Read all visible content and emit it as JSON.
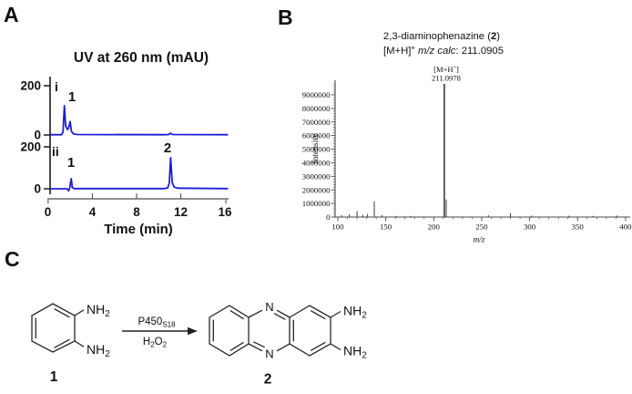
{
  "colors": {
    "trace_blue": "#1c1cd8",
    "axis_gray": "#8f8f8f",
    "axis_dark": "#1a1a1a",
    "ms_axis": "#4a4a4a",
    "ms_peak": "#3c3c3c",
    "text": "#111111"
  },
  "panelA": {
    "label": "A"
  },
  "panelB": {
    "label": "B",
    "title_prefix": "2,3-diaminophenazine (",
    "title_bold": "2",
    "title_suffix": ")",
    "subtitle_bracket": "[M+H]",
    "subtitle_sup": "+",
    "subtitle_italic": " m/z calc",
    "subtitle_rest": ": 211.0905",
    "annot_open": "[M+H",
    "annot_sup": "+",
    "annot_close": "]",
    "annot_mz": "211.0978"
  },
  "panelC": {
    "label": "C",
    "reactant_label": "1",
    "product_label": "2",
    "amine_text": "NH",
    "amine_sub": "2",
    "nitrogen": "N",
    "enzyme": "P450",
    "enzyme_sub": "S18",
    "oxidant_parts": [
      "H",
      "2",
      "O",
      "2"
    ]
  },
  "chart_data": [
    {
      "type": "line",
      "title": "UV at 260 nm (mAU)",
      "xlabel": "Time (min)",
      "y_unit": "mAU",
      "x_range": [
        0,
        16.3
      ],
      "xticks": [
        0,
        4,
        8,
        12,
        16
      ],
      "traces": [
        {
          "name": "i",
          "yticks": [
            200,
            0
          ],
          "points": [
            [
              0,
              1
            ],
            [
              1.05,
              1
            ],
            [
              1.18,
              12
            ],
            [
              1.3,
              119
            ],
            [
              1.42,
              38
            ],
            [
              1.58,
              22
            ],
            [
              1.68,
              28
            ],
            [
              1.82,
              55
            ],
            [
              1.95,
              14
            ],
            [
              2.15,
              4
            ],
            [
              2.5,
              2
            ],
            [
              10.5,
              1
            ],
            [
              10.8,
              2
            ],
            [
              10.95,
              7
            ],
            [
              11.15,
              2
            ],
            [
              16.2,
              1
            ]
          ]
        },
        {
          "name": "ii",
          "yticks": [
            200,
            0
          ],
          "points": [
            [
              0,
              0
            ],
            [
              1.55,
              0
            ],
            [
              1.68,
              -9
            ],
            [
              1.78,
              3
            ],
            [
              1.92,
              48
            ],
            [
              2.02,
              6
            ],
            [
              2.2,
              1
            ],
            [
              10.4,
              1
            ],
            [
              10.7,
              4
            ],
            [
              10.85,
              28
            ],
            [
              10.98,
              148
            ],
            [
              11.12,
              30
            ],
            [
              11.3,
              8
            ],
            [
              11.6,
              3
            ],
            [
              16.2,
              1
            ]
          ]
        }
      ],
      "peak_annotations": [
        {
          "text": "1",
          "trace": "i",
          "time": 1.6
        },
        {
          "text": "1",
          "trace": "ii",
          "time": 1.9
        },
        {
          "text": "2",
          "trace": "ii",
          "time": 10.98
        }
      ]
    },
    {
      "type": "stick",
      "title": "2,3-diaminophenazine (2)",
      "subtitle": "[M+H]+ m/z calc: 211.0905",
      "xlabel": "m/z",
      "ylabel": "Intensity",
      "x_range": [
        100,
        405
      ],
      "y_range": [
        0,
        9900000
      ],
      "xticks": [
        100,
        150,
        200,
        250,
        300,
        350,
        400
      ],
      "yticks": [
        0,
        1000000,
        2000000,
        3000000,
        4000000,
        5000000,
        6000000,
        7000000,
        8000000,
        9000000
      ],
      "annotation": {
        "label": "[M+H+]",
        "mz": "211.0978"
      },
      "peaks": [
        [
          104,
          150000
        ],
        [
          112,
          200000
        ],
        [
          120,
          430000
        ],
        [
          126,
          150000
        ],
        [
          131,
          230000
        ],
        [
          138,
          1150000
        ],
        [
          146,
          140000
        ],
        [
          161,
          90000
        ],
        [
          176,
          80000
        ],
        [
          211,
          9800000
        ],
        [
          213,
          1300000
        ],
        [
          257,
          130000
        ],
        [
          280,
          290000
        ],
        [
          302,
          110000
        ],
        [
          341,
          100000
        ],
        [
          366,
          90000
        ],
        [
          391,
          110000
        ]
      ]
    }
  ]
}
